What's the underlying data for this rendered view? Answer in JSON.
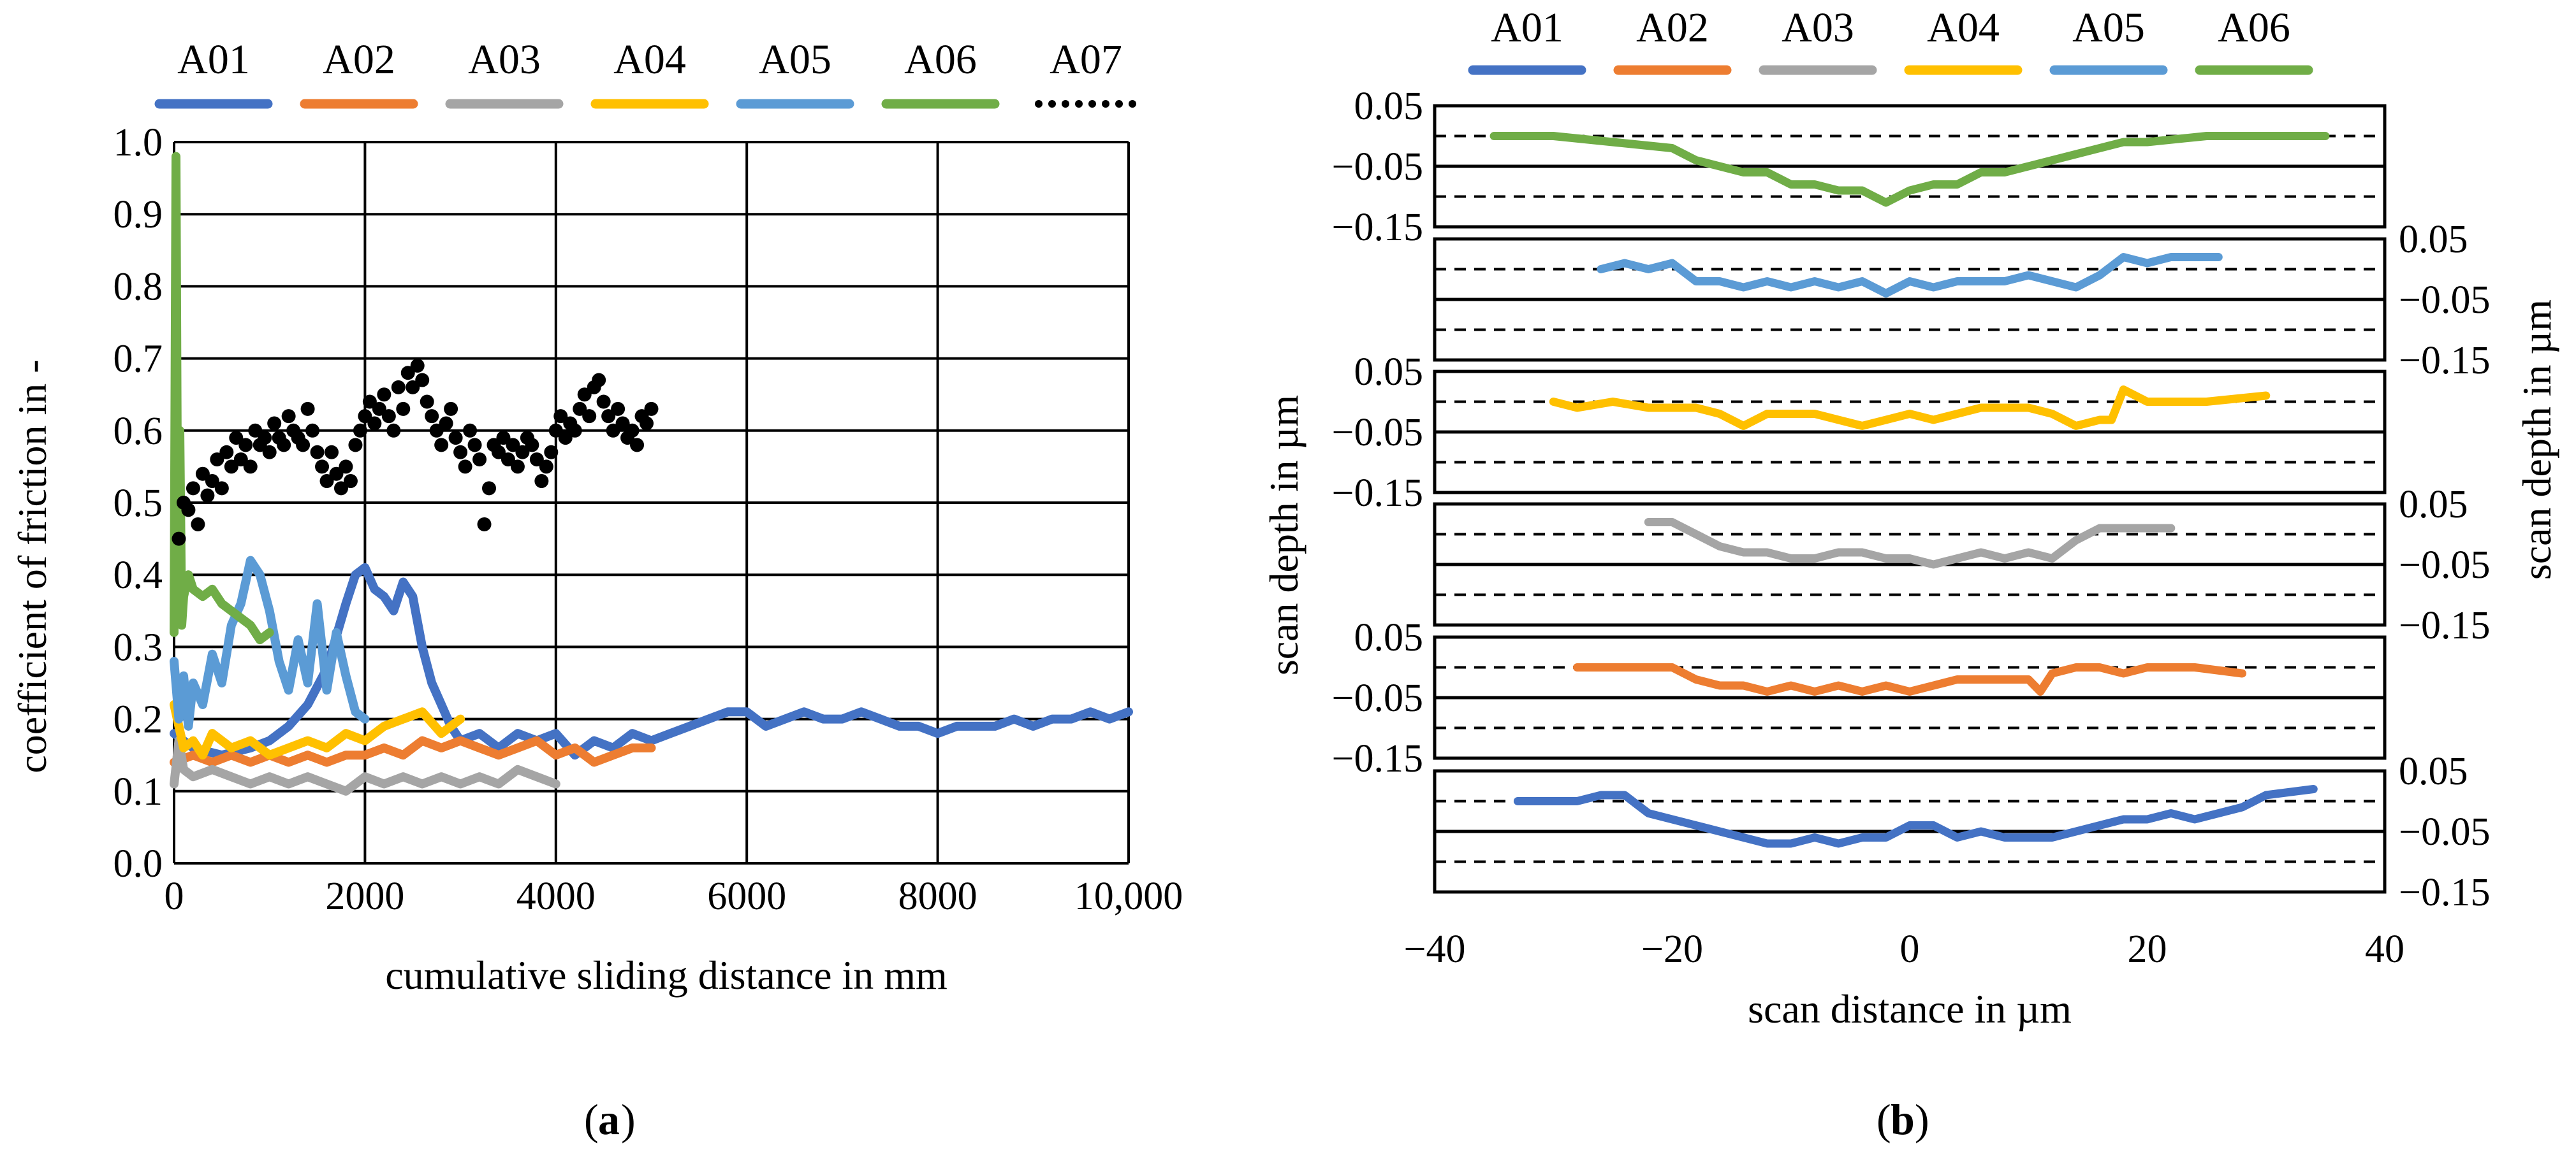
{
  "figure": {
    "panel_a_label": "a",
    "panel_b_label": "b"
  },
  "chart_data": [
    {
      "type": "line",
      "panel": "a",
      "xlabel": "cumulative sliding distance in mm",
      "ylabel": "coefficient of friction in -",
      "xlim": [
        0,
        10000
      ],
      "ylim": [
        0,
        1.0
      ],
      "xticks": [
        0,
        2000,
        4000,
        6000,
        8000,
        10000
      ],
      "xtick_labels": [
        "0",
        "2000",
        "4000",
        "6000",
        "8000",
        "10,000"
      ],
      "yticks": [
        0,
        0.1,
        0.2,
        0.3,
        0.4,
        0.5,
        0.6,
        0.7,
        0.8,
        0.9,
        1.0
      ],
      "ytick_labels": [
        "0.0",
        "0.1",
        "0.2",
        "0.3",
        "0.4",
        "0.5",
        "0.6",
        "0.7",
        "0.8",
        "0.9",
        "1.0"
      ],
      "grid": true,
      "legend_position": "top",
      "legend": [
        "A01",
        "A02",
        "A03",
        "A04",
        "A05",
        "A06",
        "A07"
      ],
      "series": [
        {
          "name": "A01",
          "color": "#4472C4",
          "style": "line",
          "x": [
            0,
            200,
            500,
            800,
            1000,
            1200,
            1400,
            1600,
            1800,
            1900,
            2000,
            2100,
            2200,
            2300,
            2400,
            2500,
            2600,
            2700,
            2800,
            2900,
            3000,
            3200,
            3400,
            3600,
            3800,
            4000,
            4200,
            4400,
            4600,
            4800,
            5000,
            5200,
            5400,
            5600,
            5800,
            6000,
            6200,
            6400,
            6600,
            6800,
            7000,
            7200,
            7400,
            7600,
            7800,
            8000,
            8200,
            8400,
            8600,
            8800,
            9000,
            9200,
            9400,
            9600,
            9800,
            10000
          ],
          "y": [
            0.18,
            0.16,
            0.15,
            0.16,
            0.17,
            0.19,
            0.22,
            0.27,
            0.36,
            0.4,
            0.41,
            0.38,
            0.37,
            0.35,
            0.39,
            0.37,
            0.3,
            0.25,
            0.22,
            0.19,
            0.17,
            0.18,
            0.16,
            0.18,
            0.17,
            0.18,
            0.15,
            0.17,
            0.16,
            0.18,
            0.17,
            0.18,
            0.19,
            0.2,
            0.21,
            0.21,
            0.19,
            0.2,
            0.21,
            0.2,
            0.2,
            0.21,
            0.2,
            0.19,
            0.19,
            0.18,
            0.19,
            0.19,
            0.19,
            0.2,
            0.19,
            0.2,
            0.2,
            0.21,
            0.2,
            0.21
          ]
        },
        {
          "name": "A02",
          "color": "#ED7D31",
          "style": "line",
          "x": [
            0,
            200,
            400,
            600,
            800,
            1000,
            1200,
            1400,
            1600,
            1800,
            2000,
            2200,
            2400,
            2600,
            2800,
            3000,
            3200,
            3400,
            3600,
            3800,
            4000,
            4200,
            4400,
            4600,
            4800,
            5000
          ],
          "y": [
            0.14,
            0.15,
            0.14,
            0.15,
            0.14,
            0.15,
            0.14,
            0.15,
            0.14,
            0.15,
            0.15,
            0.16,
            0.15,
            0.17,
            0.16,
            0.17,
            0.16,
            0.15,
            0.16,
            0.17,
            0.15,
            0.16,
            0.14,
            0.15,
            0.16,
            0.16
          ]
        },
        {
          "name": "A03",
          "color": "#A5A5A5",
          "style": "line",
          "x": [
            0,
            50,
            100,
            200,
            400,
            600,
            800,
            1000,
            1200,
            1400,
            1600,
            1800,
            2000,
            2200,
            2400,
            2600,
            2800,
            3000,
            3200,
            3400,
            3600,
            3800,
            4000
          ],
          "y": [
            0.11,
            0.17,
            0.13,
            0.12,
            0.13,
            0.12,
            0.11,
            0.12,
            0.11,
            0.12,
            0.11,
            0.1,
            0.12,
            0.11,
            0.12,
            0.11,
            0.12,
            0.11,
            0.12,
            0.11,
            0.13,
            0.12,
            0.11
          ]
        },
        {
          "name": "A04",
          "color": "#FFC000",
          "style": "line",
          "x": [
            0,
            100,
            200,
            300,
            400,
            600,
            800,
            1000,
            1200,
            1400,
            1600,
            1800,
            2000,
            2200,
            2400,
            2600,
            2800,
            3000
          ],
          "y": [
            0.22,
            0.16,
            0.17,
            0.15,
            0.18,
            0.16,
            0.17,
            0.15,
            0.16,
            0.17,
            0.16,
            0.18,
            0.17,
            0.19,
            0.2,
            0.21,
            0.18,
            0.2
          ]
        },
        {
          "name": "A05",
          "color": "#5B9BD5",
          "style": "line",
          "x": [
            0,
            50,
            100,
            150,
            200,
            300,
            400,
            500,
            600,
            700,
            800,
            900,
            1000,
            1100,
            1200,
            1300,
            1400,
            1500,
            1600,
            1700,
            1800,
            1900,
            2000
          ],
          "y": [
            0.28,
            0.2,
            0.26,
            0.19,
            0.25,
            0.22,
            0.29,
            0.25,
            0.33,
            0.36,
            0.42,
            0.4,
            0.35,
            0.28,
            0.24,
            0.31,
            0.25,
            0.36,
            0.24,
            0.32,
            0.26,
            0.21,
            0.2
          ]
        },
        {
          "name": "A06",
          "color": "#70AD47",
          "style": "line",
          "x": [
            0,
            20,
            40,
            60,
            80,
            100,
            150,
            200,
            300,
            400,
            500,
            600,
            700,
            800,
            900,
            1000
          ],
          "y": [
            0.32,
            0.98,
            0.35,
            0.6,
            0.33,
            0.37,
            0.4,
            0.38,
            0.37,
            0.38,
            0.36,
            0.35,
            0.34,
            0.33,
            0.31,
            0.32
          ]
        },
        {
          "name": "A07",
          "color": "#000000",
          "style": "scatter",
          "x": [
            50,
            100,
            150,
            200,
            250,
            300,
            350,
            400,
            450,
            500,
            550,
            600,
            650,
            700,
            750,
            800,
            850,
            900,
            950,
            1000,
            1050,
            1100,
            1150,
            1200,
            1250,
            1300,
            1350,
            1400,
            1450,
            1500,
            1550,
            1600,
            1650,
            1700,
            1750,
            1800,
            1850,
            1900,
            1950,
            2000,
            2050,
            2100,
            2150,
            2200,
            2250,
            2300,
            2350,
            2400,
            2450,
            2500,
            2550,
            2600,
            2650,
            2700,
            2750,
            2800,
            2850,
            2900,
            2950,
            3000,
            3050,
            3100,
            3150,
            3200,
            3250,
            3300,
            3350,
            3400,
            3450,
            3500,
            3550,
            3600,
            3650,
            3700,
            3750,
            3800,
            3850,
            3900,
            3950,
            4000,
            4050,
            4100,
            4150,
            4200,
            4250,
            4300,
            4350,
            4400,
            4450,
            4500,
            4550,
            4600,
            4650,
            4700,
            4750,
            4800,
            4850,
            4900,
            4950,
            5000
          ],
          "y": [
            0.45,
            0.5,
            0.49,
            0.52,
            0.47,
            0.54,
            0.51,
            0.53,
            0.56,
            0.52,
            0.57,
            0.55,
            0.59,
            0.56,
            0.58,
            0.55,
            0.6,
            0.58,
            0.59,
            0.57,
            0.61,
            0.59,
            0.58,
            0.62,
            0.6,
            0.59,
            0.58,
            0.63,
            0.6,
            0.57,
            0.55,
            0.53,
            0.57,
            0.54,
            0.52,
            0.55,
            0.53,
            0.58,
            0.6,
            0.62,
            0.64,
            0.61,
            0.63,
            0.65,
            0.62,
            0.6,
            0.66,
            0.63,
            0.68,
            0.66,
            0.69,
            0.67,
            0.64,
            0.62,
            0.6,
            0.58,
            0.61,
            0.63,
            0.59,
            0.57,
            0.55,
            0.6,
            0.58,
            0.56,
            0.47,
            0.52,
            0.58,
            0.57,
            0.59,
            0.56,
            0.58,
            0.55,
            0.57,
            0.59,
            0.58,
            0.56,
            0.53,
            0.55,
            0.57,
            0.6,
            0.62,
            0.59,
            0.61,
            0.6,
            0.63,
            0.65,
            0.62,
            0.66,
            0.67,
            0.64,
            0.62,
            0.6,
            0.63,
            0.61,
            0.59,
            0.6,
            0.58,
            0.62,
            0.61,
            0.63
          ]
        }
      ]
    },
    {
      "type": "line",
      "panel": "b",
      "xlabel": "scan distance in µm",
      "ylabel_left": "scan depth in µm",
      "ylabel_right": "scan depth in µm",
      "xlim": [
        -40,
        40
      ],
      "xticks": [
        -40,
        -20,
        0,
        20,
        40
      ],
      "xtick_labels": [
        "−40",
        "−20",
        "0",
        "20",
        "40"
      ],
      "ylim_per_track": [
        -0.15,
        0.05
      ],
      "tick_labels": [
        "0.05",
        "−0.05",
        "−0.15"
      ],
      "reference_lines": {
        "dashed": [
          0.0,
          -0.1
        ],
        "solid": [
          -0.05
        ]
      },
      "legend_position": "top",
      "legend": [
        "A01",
        "A02",
        "A03",
        "A04",
        "A05",
        "A06"
      ],
      "tracks": [
        {
          "name": "A06",
          "color": "#70AD47",
          "tick_side": "left",
          "x": [
            -35,
            -30,
            -25,
            -20,
            -18,
            -16,
            -14,
            -12,
            -10,
            -8,
            -6,
            -4,
            -2,
            0,
            2,
            4,
            6,
            8,
            10,
            12,
            14,
            16,
            18,
            20,
            25,
            30,
            35
          ],
          "y": [
            0.0,
            0.0,
            -0.01,
            -0.02,
            -0.04,
            -0.05,
            -0.06,
            -0.06,
            -0.08,
            -0.08,
            -0.09,
            -0.09,
            -0.11,
            -0.09,
            -0.08,
            -0.08,
            -0.06,
            -0.06,
            -0.05,
            -0.04,
            -0.03,
            -0.02,
            -0.01,
            -0.01,
            0.0,
            0.0,
            0.0
          ]
        },
        {
          "name": "A05",
          "color": "#5B9BD5",
          "tick_side": "right",
          "x": [
            -26,
            -24,
            -22,
            -20,
            -18,
            -16,
            -14,
            -12,
            -10,
            -8,
            -6,
            -4,
            -2,
            0,
            2,
            4,
            6,
            8,
            10,
            12,
            14,
            16,
            18,
            20,
            22,
            26
          ],
          "y": [
            0.0,
            0.01,
            0.0,
            0.01,
            -0.02,
            -0.02,
            -0.03,
            -0.02,
            -0.03,
            -0.02,
            -0.03,
            -0.02,
            -0.04,
            -0.02,
            -0.03,
            -0.02,
            -0.02,
            -0.02,
            -0.01,
            -0.02,
            -0.03,
            -0.01,
            0.02,
            0.01,
            0.02,
            0.02
          ]
        },
        {
          "name": "A04",
          "color": "#FFC000",
          "tick_side": "left",
          "x": [
            -30,
            -28,
            -25,
            -22,
            -20,
            -18,
            -16,
            -14,
            -12,
            -10,
            -8,
            -6,
            -4,
            -2,
            0,
            2,
            4,
            6,
            8,
            10,
            12,
            14,
            16,
            17,
            18,
            20,
            25,
            30
          ],
          "y": [
            0.0,
            -0.01,
            0.0,
            -0.01,
            -0.01,
            -0.01,
            -0.02,
            -0.04,
            -0.02,
            -0.02,
            -0.02,
            -0.03,
            -0.04,
            -0.03,
            -0.02,
            -0.03,
            -0.02,
            -0.01,
            -0.01,
            -0.01,
            -0.02,
            -0.04,
            -0.03,
            -0.03,
            0.02,
            0.0,
            0.0,
            0.01
          ]
        },
        {
          "name": "A03",
          "color": "#A5A5A5",
          "tick_side": "right",
          "x": [
            -22,
            -20,
            -18,
            -16,
            -14,
            -12,
            -10,
            -8,
            -6,
            -4,
            -2,
            0,
            2,
            4,
            6,
            8,
            10,
            12,
            14,
            16,
            18,
            20,
            22
          ],
          "y": [
            0.02,
            0.02,
            0.0,
            -0.02,
            -0.03,
            -0.03,
            -0.04,
            -0.04,
            -0.03,
            -0.03,
            -0.04,
            -0.04,
            -0.05,
            -0.04,
            -0.03,
            -0.04,
            -0.03,
            -0.04,
            -0.01,
            0.01,
            0.01,
            0.01,
            0.01
          ]
        },
        {
          "name": "A02",
          "color": "#ED7D31",
          "tick_side": "left",
          "x": [
            -28,
            -25,
            -22,
            -20,
            -18,
            -16,
            -14,
            -12,
            -10,
            -8,
            -6,
            -4,
            -2,
            0,
            2,
            4,
            6,
            8,
            10,
            11,
            12,
            14,
            16,
            18,
            20,
            24,
            28
          ],
          "y": [
            0.0,
            0.0,
            0.0,
            0.0,
            -0.02,
            -0.03,
            -0.03,
            -0.04,
            -0.03,
            -0.04,
            -0.03,
            -0.04,
            -0.03,
            -0.04,
            -0.03,
            -0.02,
            -0.02,
            -0.02,
            -0.02,
            -0.04,
            -0.01,
            0.0,
            0.0,
            -0.01,
            0.0,
            0.0,
            -0.01
          ]
        },
        {
          "name": "A01",
          "color": "#4472C4",
          "tick_side": "right",
          "x": [
            -33,
            -30,
            -28,
            -26,
            -24,
            -22,
            -20,
            -18,
            -16,
            -14,
            -12,
            -10,
            -8,
            -6,
            -4,
            -2,
            0,
            2,
            4,
            6,
            8,
            10,
            12,
            14,
            16,
            18,
            20,
            22,
            24,
            26,
            28,
            30,
            34
          ],
          "y": [
            0.0,
            0.0,
            0.0,
            0.01,
            0.01,
            -0.02,
            -0.03,
            -0.04,
            -0.05,
            -0.06,
            -0.07,
            -0.07,
            -0.06,
            -0.07,
            -0.06,
            -0.06,
            -0.04,
            -0.04,
            -0.06,
            -0.05,
            -0.06,
            -0.06,
            -0.06,
            -0.05,
            -0.04,
            -0.03,
            -0.03,
            -0.02,
            -0.03,
            -0.02,
            -0.01,
            0.01,
            0.02
          ]
        }
      ]
    }
  ]
}
